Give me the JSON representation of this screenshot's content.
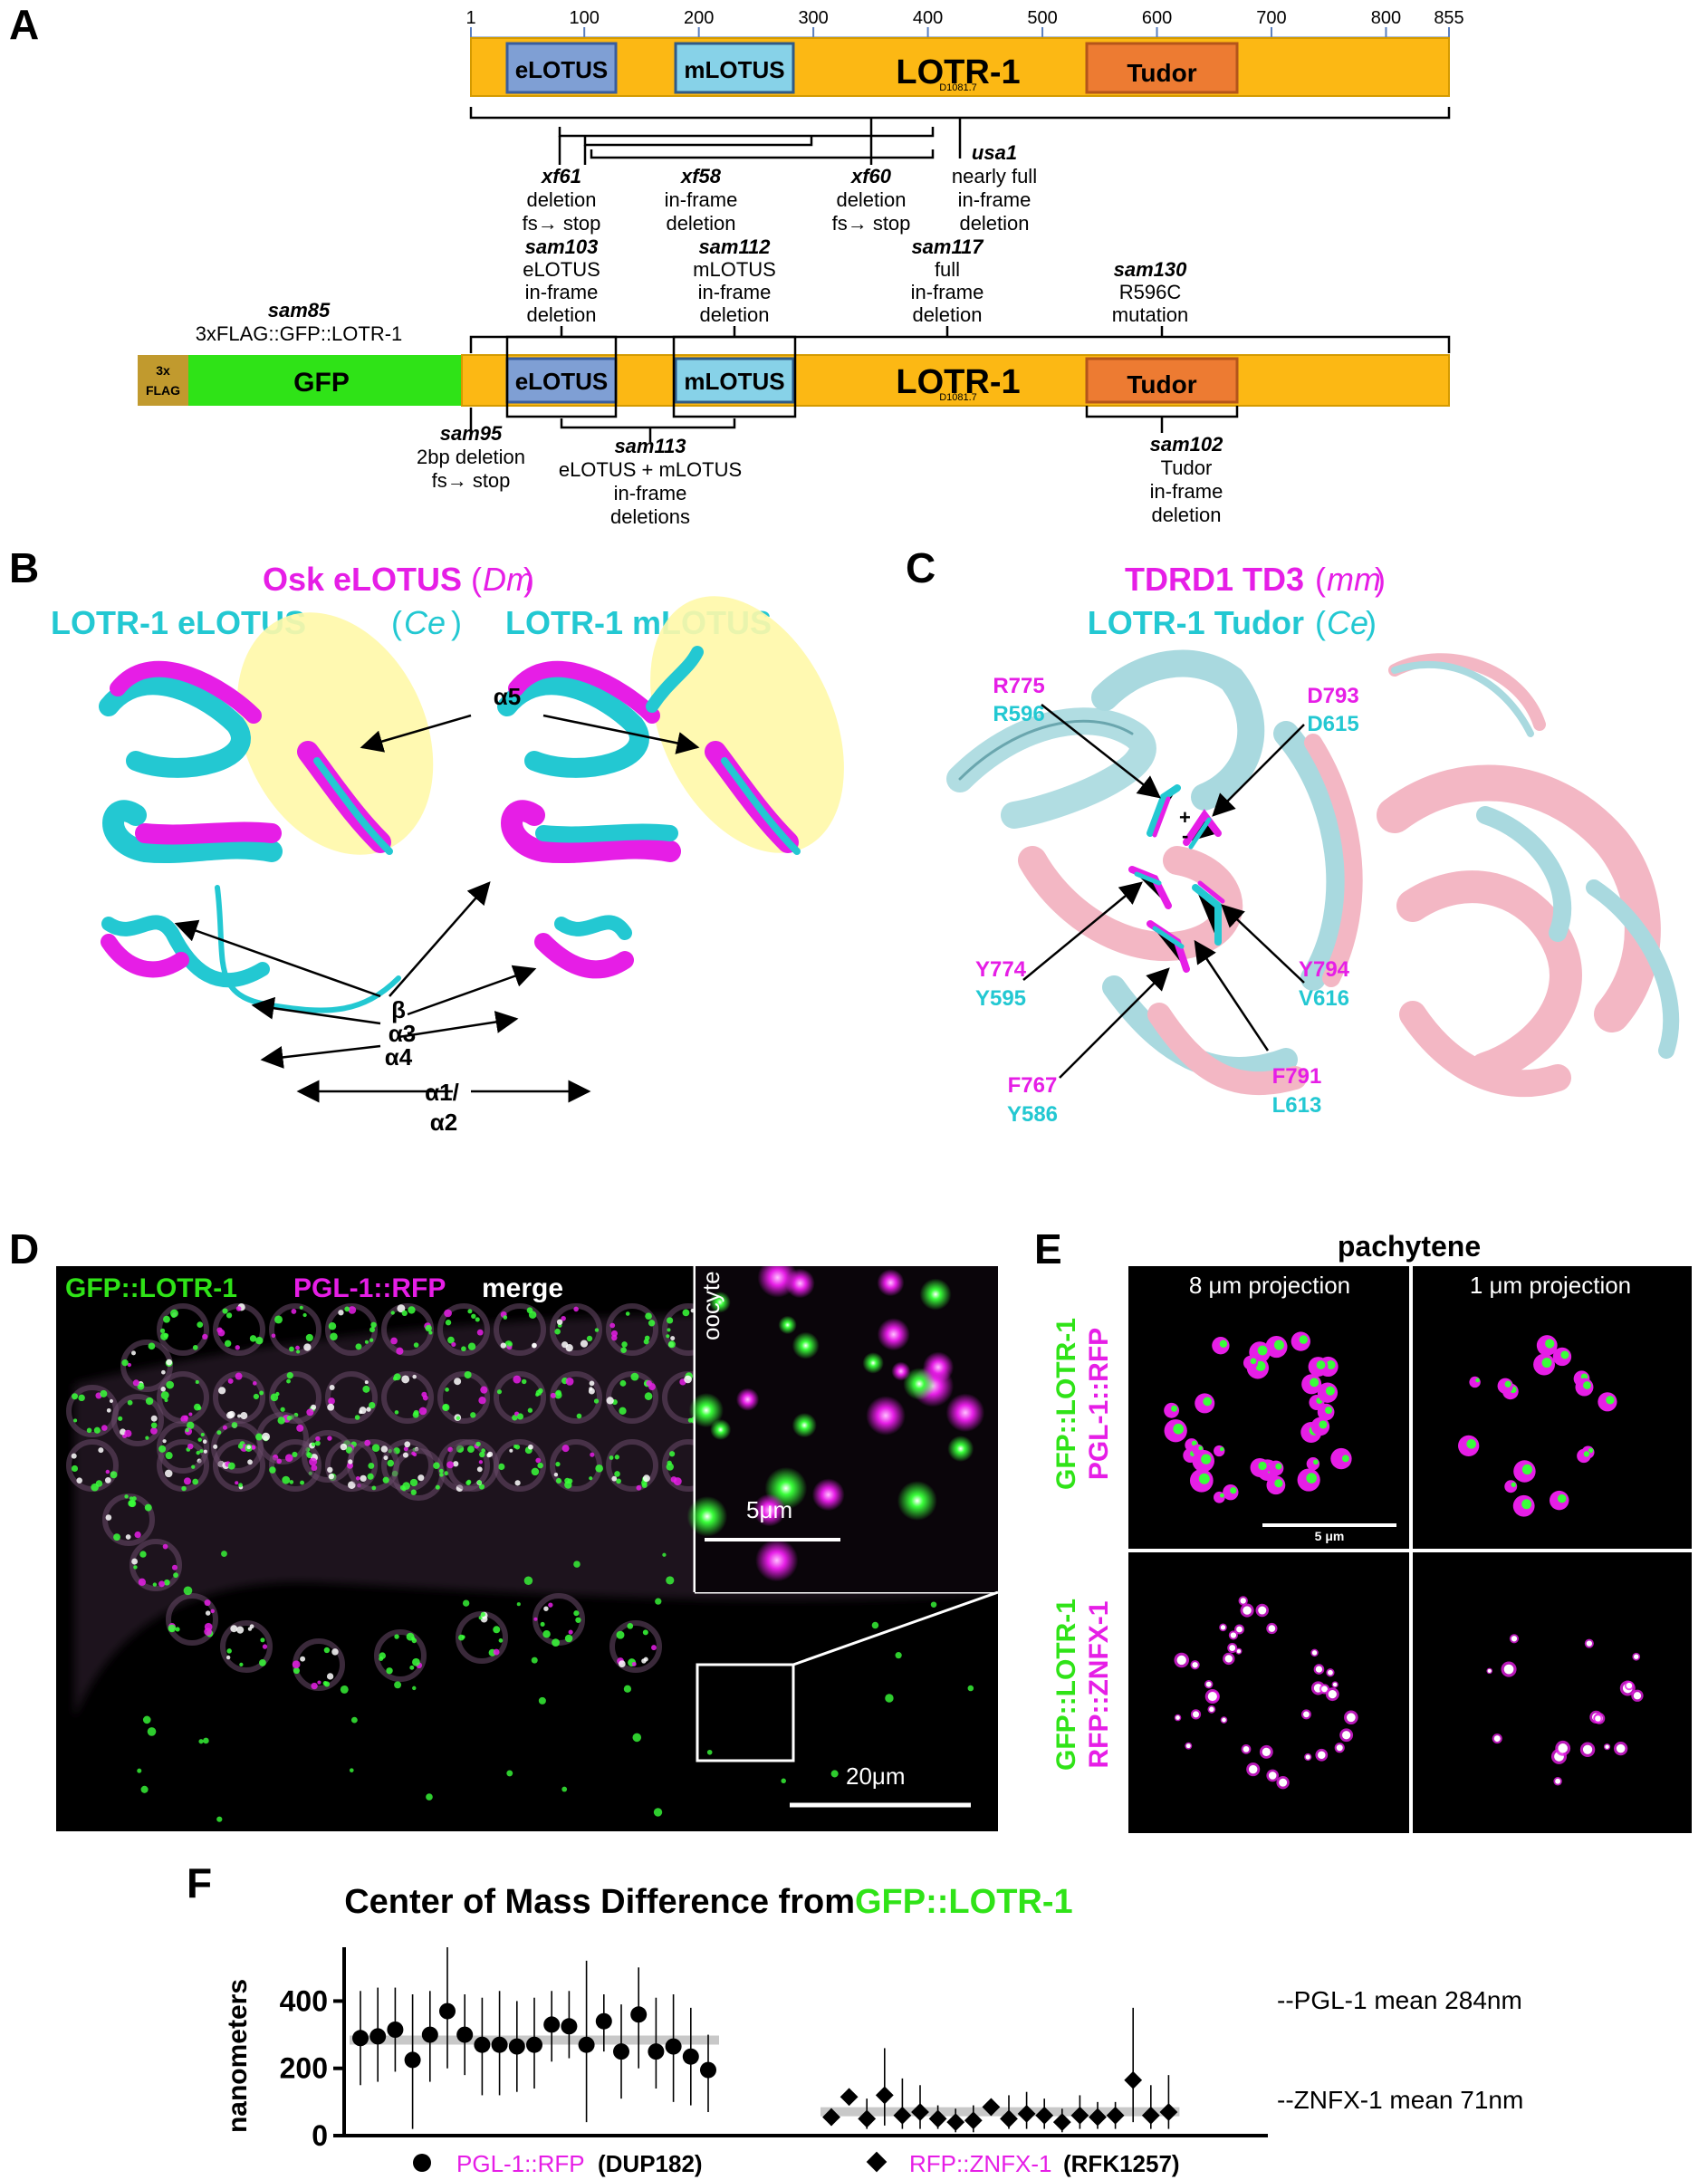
{
  "panels": {
    "a": "A",
    "b": "B",
    "c": "C",
    "d": "D",
    "e": "E",
    "f": "F"
  },
  "panel_a": {
    "ruler_ticks": [
      {
        "label": "1",
        "pos": 1
      },
      {
        "label": "100",
        "pos": 100
      },
      {
        "label": "200",
        "pos": 200
      },
      {
        "label": "300",
        "pos": 300
      },
      {
        "label": "400",
        "pos": 400
      },
      {
        "label": "500",
        "pos": 500
      },
      {
        "label": "600",
        "pos": 600
      },
      {
        "label": "700",
        "pos": 700
      },
      {
        "label": "800",
        "pos": 800
      },
      {
        "label": "855",
        "pos": 855
      }
    ],
    "domains": {
      "elotus": "eLOTUS",
      "mlotus": "mLOTUS",
      "lotr": "LOTR-1",
      "lotr_sub": "D1081.7",
      "tudor": "Tudor"
    },
    "gfp_construct": {
      "flag": "3x\nFLAG",
      "gfp": "GFP",
      "allele": "sam85",
      "desc": "3xFLAG::GFP::LOTR-1"
    },
    "top_alleles": [
      {
        "name": "xf61",
        "desc": [
          "deletion",
          "fs→ stop"
        ]
      },
      {
        "name": "xf58",
        "desc": [
          "in-frame",
          "deletion"
        ]
      },
      {
        "name": "xf60",
        "desc": [
          "deletion",
          "fs→ stop"
        ]
      },
      {
        "name": "usa1",
        "desc": [
          "nearly full",
          "in-frame",
          "deletion"
        ]
      }
    ],
    "mid_alleles": [
      {
        "name": "sam103",
        "desc": [
          "eLOTUS",
          "in-frame",
          "deletion"
        ]
      },
      {
        "name": "sam112",
        "desc": [
          "mLOTUS",
          "in-frame",
          "deletion"
        ]
      },
      {
        "name": "sam117",
        "desc": [
          "full",
          "in-frame",
          "deletion"
        ]
      },
      {
        "name": "sam130",
        "desc": [
          "R596C",
          "mutation"
        ]
      }
    ],
    "bottom_alleles": [
      {
        "name": "sam95",
        "desc": [
          "2bp deletion",
          "fs→ stop"
        ]
      },
      {
        "name": "sam113",
        "desc": [
          "eLOTUS + mLOTUS",
          "in-frame",
          "deletions"
        ]
      },
      {
        "name": "sam102",
        "desc": [
          "Tudor",
          "in-frame",
          "deletion"
        ]
      }
    ]
  },
  "panel_b": {
    "title1": "Osk eLOTUS",
    "title1_species": "Dm",
    "title2a": "LOTR-1 eLOTUS",
    "title2a_species": "Ce",
    "title2b": "LOTR-1 mLOTUS",
    "labels": {
      "a5": "α5",
      "b": "β",
      "a3": "α3",
      "a4": "α4",
      "a1": "α1/",
      "a2": "α2"
    }
  },
  "panel_c": {
    "title1": "TDRD1 TD3",
    "title1_species": "mm",
    "title2": "LOTR-1 Tudor",
    "title2_species": "Ce",
    "residues": [
      {
        "mm": "R775",
        "ce": "R596"
      },
      {
        "mm": "D793",
        "ce": "D615"
      },
      {
        "mm": "Y774",
        "ce": "Y595"
      },
      {
        "mm": "Y794",
        "ce": "V616"
      },
      {
        "mm": "F791",
        "ce": "L613"
      },
      {
        "mm": "F767",
        "ce": "Y586"
      }
    ],
    "charges": {
      "plus": "+",
      "minus": "-"
    }
  },
  "panel_d": {
    "label_green": "GFP::LOTR-1",
    "label_magenta": "PGL-1::RFP",
    "label_merge": "merge",
    "inset_label": "oocyte",
    "scale_inset": "5μm",
    "scale_main": "20μm"
  },
  "panel_e": {
    "title": "pachytene",
    "col1": "8 μm projection",
    "col2": "1 μm projection",
    "row1_green": "GFP::LOTR-1",
    "row1_magenta": "PGL-1::RFP",
    "row2_green": "GFP::LOTR-1",
    "row2_magenta": "RFP::ZNFX-1",
    "scale": "5 μm"
  },
  "chart_data": {
    "type": "scatter",
    "title_prefix": "Center of Mass Difference from ",
    "title_highlight": "GFP::LOTR-1",
    "ylabel": "nanometers",
    "ylim": [
      0,
      560
    ],
    "yticks": [
      0,
      200,
      400
    ],
    "series": [
      {
        "name": "PGL-1::RFP",
        "strain": "(DUP182)",
        "marker": "circle",
        "mean": 284,
        "mean_label": "--PGL-1 mean 284nm",
        "values": [
          290,
          295,
          315,
          225,
          300,
          370,
          300,
          270,
          270,
          265,
          270,
          330,
          325,
          270,
          340,
          250,
          360,
          250,
          265,
          235,
          195
        ],
        "upper": [
          430,
          440,
          440,
          420,
          430,
          560,
          420,
          410,
          430,
          400,
          410,
          430,
          430,
          520,
          420,
          390,
          500,
          410,
          420,
          380,
          300
        ],
        "lower": [
          150,
          160,
          190,
          20,
          160,
          200,
          180,
          120,
          120,
          130,
          140,
          220,
          230,
          40,
          250,
          110,
          200,
          140,
          100,
          90,
          70
        ]
      },
      {
        "name": "RFP::ZNFX-1",
        "strain": "(RFK1257)",
        "marker": "diamond",
        "mean": 71,
        "mean_label": "--ZNFX-1 mean 71nm",
        "values": [
          55,
          115,
          50,
          120,
          60,
          70,
          50,
          40,
          45,
          85,
          50,
          65,
          60,
          40,
          60,
          55,
          60,
          165,
          60,
          70
        ],
        "upper": [
          80,
          140,
          110,
          260,
          170,
          150,
          90,
          80,
          90,
          110,
          120,
          130,
          110,
          80,
          120,
          100,
          100,
          380,
          150,
          180
        ],
        "lower": [
          30,
          90,
          20,
          30,
          20,
          20,
          20,
          10,
          10,
          60,
          20,
          20,
          20,
          10,
          20,
          20,
          20,
          40,
          20,
          20
        ]
      }
    ]
  }
}
